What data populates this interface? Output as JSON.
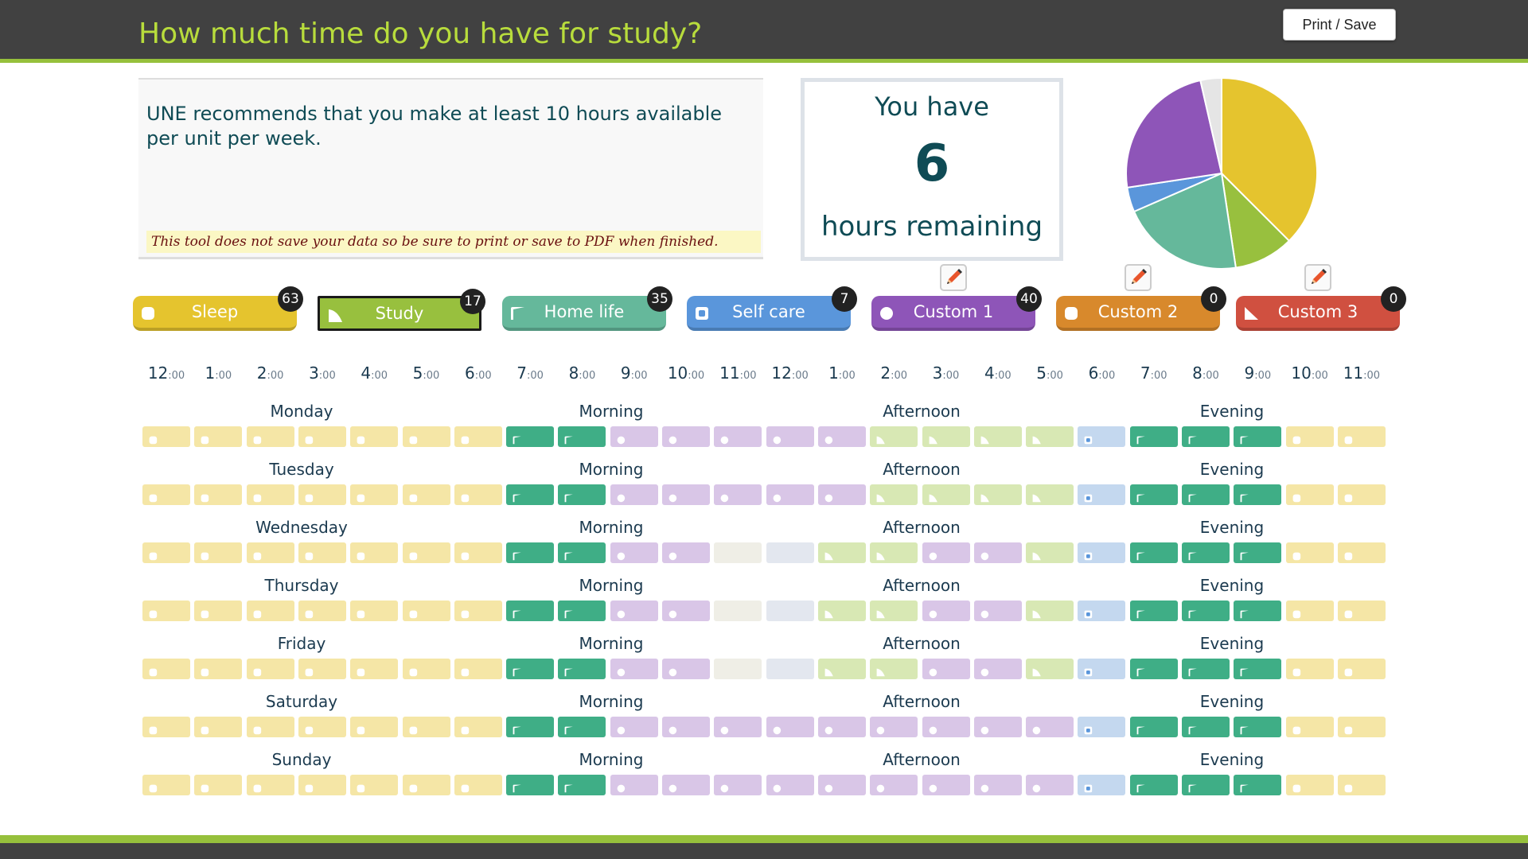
{
  "header": {
    "title": "How much time do you have for study?",
    "print_label": "Print / Save"
  },
  "info": {
    "recommendation": "UNE recommends that you make at least 10 hours available per unit per week.",
    "warning": "This tool does not save your data so be sure to print or save to PDF when finished."
  },
  "remaining": {
    "top": "You have",
    "hours": "6",
    "bottom": "hours remaining"
  },
  "categories": [
    {
      "id": "sleep",
      "label": "Sleep",
      "count": "63",
      "color": "#e5c42e",
      "light": "#f5e9a8",
      "icon": "rounded-square-icon",
      "editable": false,
      "selected": false
    },
    {
      "id": "study",
      "label": "Study",
      "count": "17",
      "color": "#98c03e",
      "light": "#d5e6b0",
      "icon": "triangle-corner-icon",
      "editable": false,
      "selected": true
    },
    {
      "id": "home",
      "label": "Home life",
      "count": "35",
      "color": "#65b89b",
      "light": "#3fae86",
      "icon": "flag-corner-icon",
      "editable": false,
      "selected": false
    },
    {
      "id": "self",
      "label": "Self care",
      "count": "7",
      "color": "#5a96db",
      "light": "#c4d9ef",
      "icon": "square-dot-icon",
      "editable": false,
      "selected": false
    },
    {
      "id": "c1",
      "label": "Custom 1",
      "count": "40",
      "color": "#8e55b8",
      "light": "#d9c6e6",
      "icon": "circle-icon",
      "editable": true,
      "selected": false
    },
    {
      "id": "c2",
      "label": "Custom 2",
      "count": "0",
      "color": "#d8892c",
      "light": "#f0d0a8",
      "icon": "rounded-square-icon",
      "editable": true,
      "selected": false
    },
    {
      "id": "c3",
      "label": "Custom 3",
      "count": "0",
      "color": "#d05040",
      "light": "#f0b8b0",
      "icon": "triangle-icon",
      "editable": true,
      "selected": false
    }
  ],
  "hours": [
    [
      "12",
      ":00"
    ],
    [
      "1",
      ":00"
    ],
    [
      "2",
      ":00"
    ],
    [
      "3",
      ":00"
    ],
    [
      "4",
      ":00"
    ],
    [
      "5",
      ":00"
    ],
    [
      "6",
      ":00"
    ],
    [
      "7",
      ":00"
    ],
    [
      "8",
      ":00"
    ],
    [
      "9",
      ":00"
    ],
    [
      "10",
      ":00"
    ],
    [
      "11",
      ":00"
    ],
    [
      "12",
      ":00"
    ],
    [
      "1",
      ":00"
    ],
    [
      "2",
      ":00"
    ],
    [
      "3",
      ":00"
    ],
    [
      "4",
      ":00"
    ],
    [
      "5",
      ":00"
    ],
    [
      "6",
      ":00"
    ],
    [
      "7",
      ":00"
    ],
    [
      "8",
      ":00"
    ],
    [
      "9",
      ":00"
    ],
    [
      "10",
      ":00"
    ],
    [
      "11",
      ":00"
    ]
  ],
  "periods": {
    "morning": "Morning",
    "afternoon": "Afternoon",
    "evening": "Evening"
  },
  "days": [
    {
      "name": "Monday",
      "slots": "SSSSSSSHHCCCCCTTTTFHHHSS"
    },
    {
      "name": "Tuesday",
      "slots": "SSSSSSSHHCCCCCTTTTFHHHSS"
    },
    {
      "name": "Wednesday",
      "slots": "SSSSSSSHHCCXYTTCCTFHHHSS"
    },
    {
      "name": "Thursday",
      "slots": "SSSSSSSHHCCXYTTCCTFHHHSS"
    },
    {
      "name": "Friday",
      "slots": "SSSSSSSHHCCXYTTCCTFHHHSS"
    },
    {
      "name": "Saturday",
      "slots": "SSSSSSSHHCCCCCCCCCFHHHSS"
    },
    {
      "name": "Sunday",
      "slots": "SSSSSSSHHCCCCCCCCCFHHHSS"
    }
  ],
  "slot_key": {
    "S": "sleep",
    "T": "study",
    "H": "home life",
    "F": "self care",
    "C": "custom 1",
    "X": "unassigned",
    "Y": "unassigned"
  },
  "pie": {
    "slices": [
      {
        "label": "Sleep",
        "hours": 63,
        "color": "#e5c42e"
      },
      {
        "label": "Study",
        "hours": 17,
        "color": "#98c03e"
      },
      {
        "label": "Home life",
        "hours": 35,
        "color": "#65b89b"
      },
      {
        "label": "Self care",
        "hours": 7,
        "color": "#5a96db"
      },
      {
        "label": "Custom 1",
        "hours": 40,
        "color": "#8e55b8"
      },
      {
        "label": "Remaining",
        "hours": 6,
        "color": "#e5e5e5"
      }
    ]
  }
}
